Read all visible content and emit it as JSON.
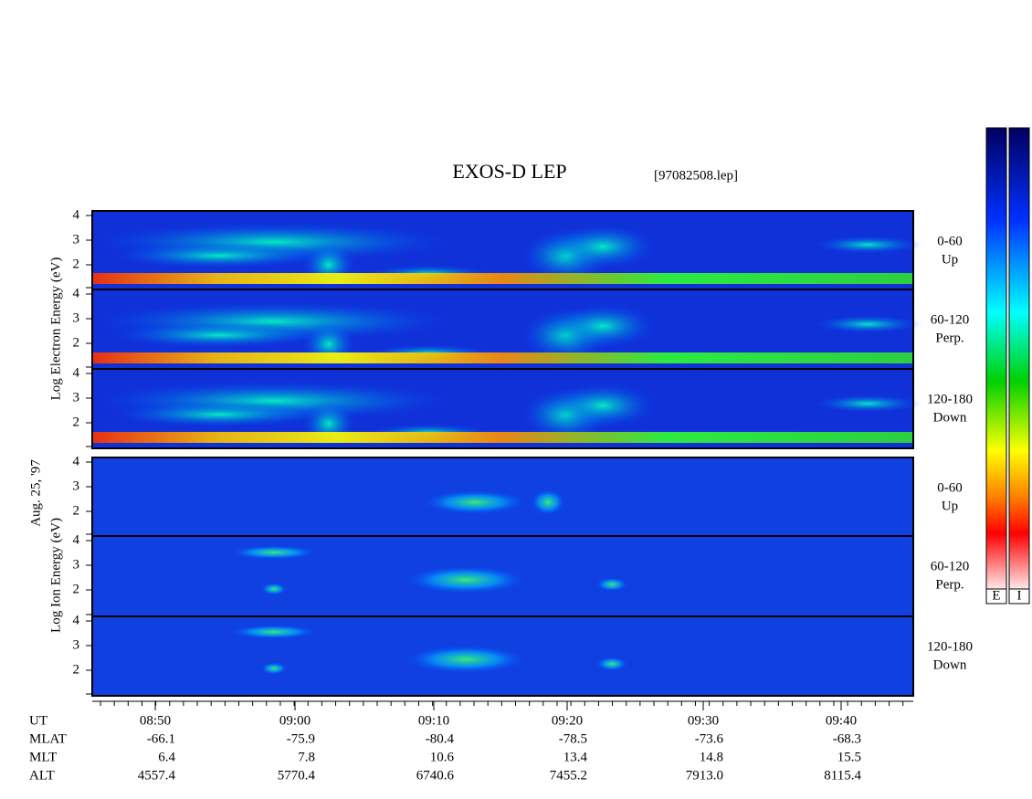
{
  "title": "EXOS-D LEP",
  "file": "[97082508.lep]",
  "date": "Aug. 25, '97",
  "electron_axis_label": "Log Electron Energy (eV)",
  "ion_axis_label": "Log Ion Energy (eV)",
  "yticks": [
    "4",
    "3",
    "2"
  ],
  "panels": [
    {
      "range": "0-60",
      "direction": "Up"
    },
    {
      "range": "60-120",
      "direction": "Perp."
    },
    {
      "range": "120-180",
      "direction": "Down"
    },
    {
      "range": "0-60",
      "direction": "Up"
    },
    {
      "range": "60-120",
      "direction": "Perp."
    },
    {
      "range": "120-180",
      "direction": "Down"
    }
  ],
  "time_axis": {
    "rows": [
      {
        "label": "UT",
        "values": [
          "08:50",
          "09:00",
          "09:10",
          "09:20",
          "09:30",
          "09:40"
        ]
      },
      {
        "label": "MLAT",
        "values": [
          "-66.1",
          "-75.9",
          "-80.4",
          "-78.5",
          "-73.6",
          "-68.3"
        ]
      },
      {
        "label": "MLT",
        "values": [
          "6.4",
          "7.8",
          "10.6",
          "13.4",
          "14.8",
          "15.5"
        ]
      },
      {
        "label": "ALT",
        "values": [
          "4557.4",
          "5770.4",
          "6740.6",
          "7455.2",
          "7913.0",
          "8115.4"
        ]
      }
    ]
  },
  "colorbar_labels": [
    "E",
    "I"
  ]
}
